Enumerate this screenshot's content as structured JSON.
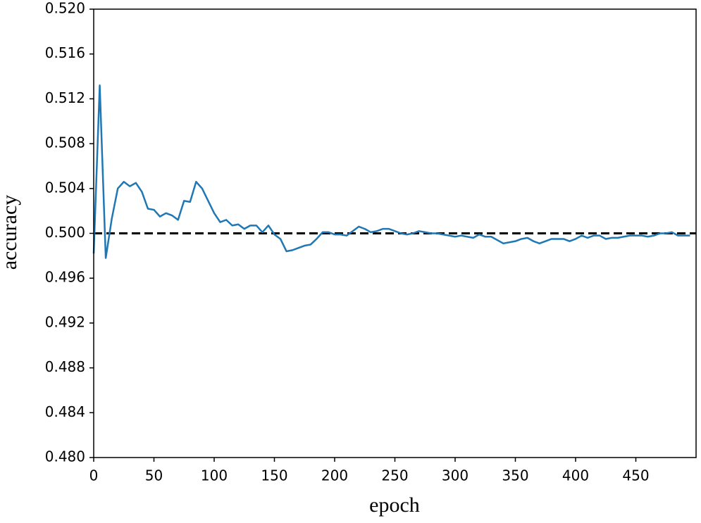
{
  "chart_data": {
    "type": "line",
    "xlabel": "epoch",
    "ylabel": "accuracy",
    "x": [
      0,
      5,
      10,
      15,
      20,
      25,
      30,
      35,
      40,
      45,
      50,
      55,
      60,
      65,
      70,
      75,
      80,
      85,
      90,
      95,
      100,
      105,
      110,
      115,
      120,
      125,
      130,
      135,
      140,
      145,
      150,
      155,
      160,
      165,
      170,
      175,
      180,
      185,
      190,
      195,
      200,
      205,
      210,
      215,
      220,
      225,
      230,
      235,
      240,
      245,
      250,
      255,
      260,
      265,
      270,
      275,
      280,
      285,
      290,
      295,
      300,
      305,
      310,
      315,
      320,
      325,
      330,
      335,
      340,
      345,
      350,
      355,
      360,
      365,
      370,
      375,
      380,
      385,
      390,
      395,
      400,
      405,
      410,
      415,
      420,
      425,
      430,
      435,
      440,
      445,
      450,
      455,
      460,
      465,
      470,
      475,
      480,
      485,
      490,
      495
    ],
    "series": [
      {
        "name": "accuracy",
        "color": "#1f77b4",
        "values": [
          0.4982,
          0.5132,
          0.4978,
          0.5013,
          0.504,
          0.5046,
          0.5042,
          0.5045,
          0.5037,
          0.5022,
          0.5021,
          0.5015,
          0.5018,
          0.5016,
          0.5012,
          0.5029,
          0.5028,
          0.5046,
          0.504,
          0.5029,
          0.5018,
          0.501,
          0.5012,
          0.5007,
          0.5008,
          0.5004,
          0.5007,
          0.5007,
          0.5001,
          0.5007,
          0.4999,
          0.4995,
          0.4984,
          0.4985,
          0.4987,
          0.4989,
          0.499,
          0.4995,
          0.5001,
          0.5001,
          0.4999,
          0.4999,
          0.4998,
          0.5002,
          0.5006,
          0.5004,
          0.5001,
          0.5002,
          0.5004,
          0.5004,
          0.5002,
          0.5,
          0.4999,
          0.5,
          0.5002,
          0.5001,
          0.5,
          0.5,
          0.4999,
          0.4998,
          0.4997,
          0.4998,
          0.4997,
          0.4996,
          0.4999,
          0.4997,
          0.4997,
          0.4994,
          0.4991,
          0.4992,
          0.4993,
          0.4995,
          0.4996,
          0.4993,
          0.4991,
          0.4993,
          0.4995,
          0.4995,
          0.4995,
          0.4993,
          0.4995,
          0.4998,
          0.4996,
          0.4998,
          0.4998,
          0.4995,
          0.4996,
          0.4996,
          0.4997,
          0.4998,
          0.4998,
          0.4998,
          0.4997,
          0.4998,
          0.5,
          0.5,
          0.5001,
          0.4998,
          0.4998,
          0.4998
        ]
      }
    ],
    "reference_line": {
      "value": 0.5,
      "color": "#000000",
      "style": "dashed"
    },
    "xlim": [
      0,
      500
    ],
    "xticks": [
      0,
      50,
      100,
      150,
      200,
      250,
      300,
      350,
      400,
      450
    ],
    "ylim": [
      0.48,
      0.52
    ],
    "yticks": [
      {
        "value": 0.48,
        "label": "0.480"
      },
      {
        "value": 0.484,
        "label": "0.484"
      },
      {
        "value": 0.488,
        "label": "0.488"
      },
      {
        "value": 0.492,
        "label": "0.492"
      },
      {
        "value": 0.496,
        "label": "0.496"
      },
      {
        "value": 0.5,
        "label": "0.500"
      },
      {
        "value": 0.504,
        "label": "0.504"
      },
      {
        "value": 0.508,
        "label": "0.508"
      },
      {
        "value": 0.512,
        "label": "0.512"
      },
      {
        "value": 0.516,
        "label": "0.516"
      },
      {
        "value": 0.52,
        "label": "0.520"
      }
    ],
    "grid": false
  }
}
